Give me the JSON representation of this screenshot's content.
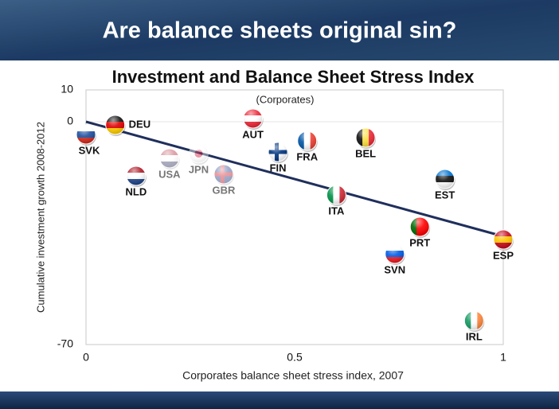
{
  "slide_title": "Are balance sheets original sin?",
  "chart_data": {
    "type": "scatter",
    "title": "Investment and Balance Sheet Stress Index",
    "subtitle": "(Corporates)",
    "x_label": "Corporates balance sheet stress index, 2007",
    "y_label": "Cumulative investment growth 2008-2012",
    "xlim": [
      0,
      1
    ],
    "xticks": [
      0,
      0.5,
      1
    ],
    "ylim": [
      -70,
      10
    ],
    "yticks": [
      -70,
      0,
      10
    ],
    "labels": [
      "SVK",
      "DEU",
      "JPN",
      "USA",
      "NLD",
      "GBR",
      "AUT",
      "FIN",
      "FRA",
      "BEL",
      "EST",
      "ITA",
      "PRT",
      "SVN",
      "ESP",
      "IRL"
    ],
    "x": [
      0.0,
      0.07,
      0.27,
      0.2,
      0.12,
      0.33,
      0.4,
      0.46,
      0.53,
      0.67,
      0.86,
      0.6,
      0.8,
      0.74,
      1.0,
      0.93
    ],
    "values": [
      -4,
      -1,
      -10,
      -11.5,
      -17,
      -16.5,
      1,
      -9.5,
      -6,
      -5,
      -18,
      -23,
      -33,
      -41.5,
      -37,
      -62.5
    ],
    "faded": [
      false,
      false,
      true,
      true,
      false,
      true,
      false,
      false,
      false,
      false,
      false,
      false,
      false,
      false,
      false,
      false
    ],
    "flag_kind": [
      "h",
      "h",
      "disc",
      "h",
      "h",
      "cross",
      "h",
      "cross",
      "v",
      "v",
      "h",
      "v",
      "v",
      "h",
      "h",
      "v"
    ],
    "flag_colors": [
      [
        "#ffffff",
        "#1d4fa0",
        "#d52b1e"
      ],
      [
        "#111111",
        "#dd0000",
        "#ffce00"
      ],
      [
        "#ffffff",
        "#cc0022"
      ],
      [
        "#b22234",
        "#ffffff",
        "#3c3b6e"
      ],
      [
        "#ae1c28",
        "#ffffff",
        "#21468b"
      ],
      [
        "#1f3c88",
        "#cc1122"
      ],
      [
        "#ed2939",
        "#ffffff",
        "#ed2939"
      ],
      [
        "#ffffff",
        "#003580"
      ],
      [
        "#0055a4",
        "#ffffff",
        "#ef4135"
      ],
      [
        "#111111",
        "#fae042",
        "#ed2939"
      ],
      [
        "#0072ce",
        "#111111",
        "#ffffff"
      ],
      [
        "#009246",
        "#ffffff",
        "#ce2b37"
      ],
      [
        "#006600",
        "#ff0000",
        "#ff0000"
      ],
      [
        "#ffffff",
        "#005ce6",
        "#ed1c24"
      ],
      [
        "#c60b1e",
        "#ffc400",
        "#c60b1e"
      ],
      [
        "#169b62",
        "#ffffff",
        "#ff883e"
      ]
    ],
    "trend": {
      "x": [
        0,
        1
      ],
      "y": [
        0,
        -36
      ],
      "color": "#1f2f5c"
    },
    "grid_zero_line": true
  }
}
